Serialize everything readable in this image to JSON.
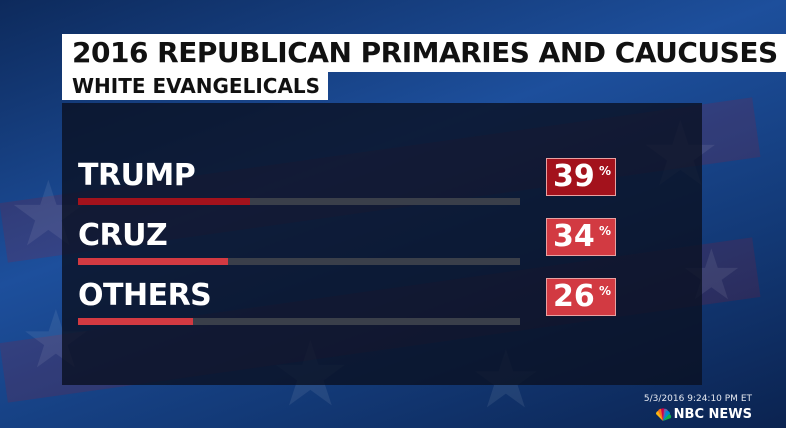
{
  "header": {
    "title": "2016 REPUBLICAN PRIMARIES AND CAUCUSES",
    "subtitle": "WHITE EVANGELICALS"
  },
  "chart_data": {
    "type": "bar",
    "orientation": "horizontal",
    "title": "2016 REPUBLICAN PRIMARIES AND CAUCUSES",
    "subtitle": "WHITE EVANGELICALS",
    "categories": [
      "TRUMP",
      "CRUZ",
      "OTHERS"
    ],
    "values": [
      39,
      34,
      26
    ],
    "value_labels": [
      "39",
      "34",
      "26"
    ],
    "unit": "%",
    "xlim": [
      0,
      100
    ],
    "colors": {
      "leader": "#a3121c",
      "other": "#d23a42"
    }
  },
  "footer": {
    "timestamp": "5/3/2016 9:24:10 PM ET",
    "network": "NBC NEWS",
    "logo_icon": "peacock-icon"
  }
}
